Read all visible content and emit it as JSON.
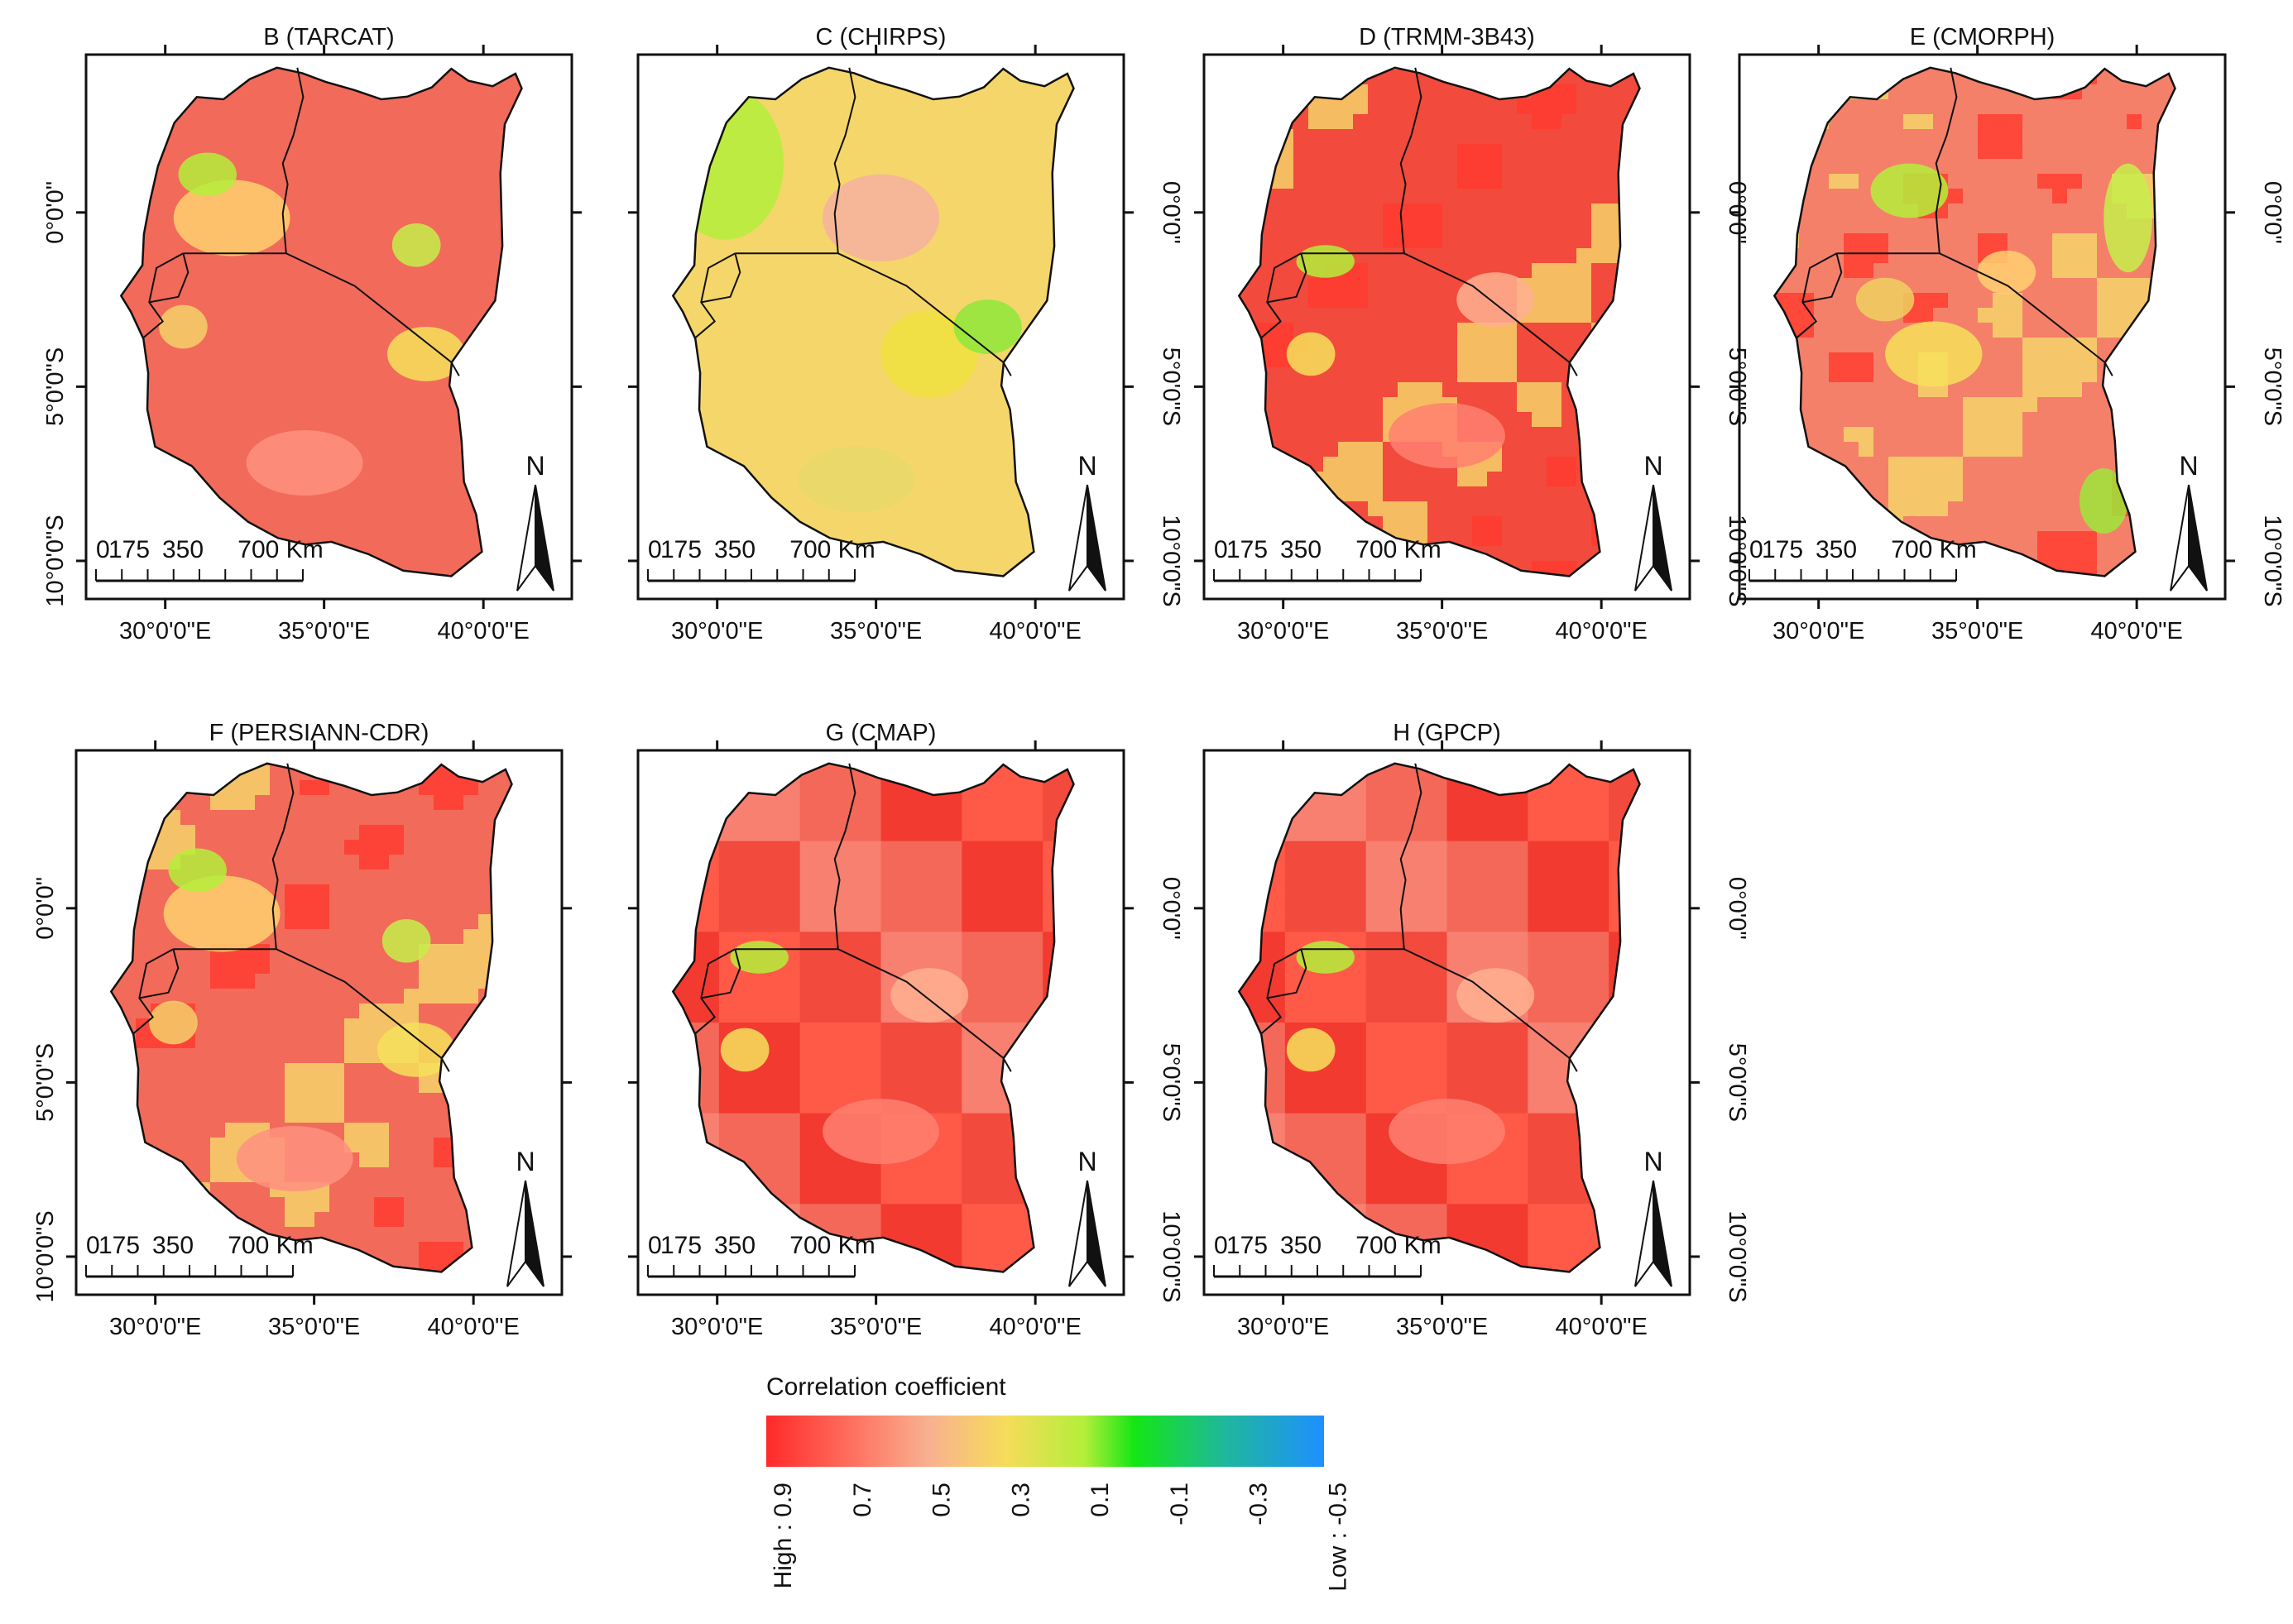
{
  "figure": {
    "panels": [
      {
        "id": "B",
        "title": "B (TARCAT)",
        "palette": "warm",
        "style": "smooth"
      },
      {
        "id": "C",
        "title": "C (CHIRPS)",
        "palette": "yellow",
        "style": "smooth"
      },
      {
        "id": "D",
        "title": "D (TRMM-3B43)",
        "palette": "red",
        "style": "pixel"
      },
      {
        "id": "E",
        "title": "E (CMORPH)",
        "palette": "mixed",
        "style": "pixel"
      },
      {
        "id": "F",
        "title": "F (PERSIANN-CDR)",
        "palette": "warm",
        "style": "pixel"
      },
      {
        "id": "G",
        "title": "G (CMAP)",
        "palette": "red",
        "style": "block"
      },
      {
        "id": "H",
        "title": "H (GPCP)",
        "palette": "red",
        "style": "block"
      }
    ],
    "x_ticks": [
      "30°0'0\"E",
      "35°0'0\"E",
      "40°0'0\"E"
    ],
    "y_ticks": [
      "0°0'0\"",
      "5°0'0\"S",
      "10°0'0\"S"
    ],
    "scalebar": {
      "labels": [
        "0",
        "175",
        "350",
        "700 Km"
      ]
    },
    "north_label": "N",
    "legend": {
      "title": "Correlation coefficient",
      "ticks": [
        "High : 0.9",
        "0.7",
        "0.5",
        "0.3",
        "0.1",
        "-0.1",
        "-0.3",
        "Low : -0.5"
      ],
      "colors": [
        "#ff2a2a",
        "#ff8c6e",
        "#f8c88a",
        "#f2e43a",
        "#b4ee3a",
        "#14e614",
        "#1fb89a",
        "#1e90ff"
      ]
    }
  }
}
